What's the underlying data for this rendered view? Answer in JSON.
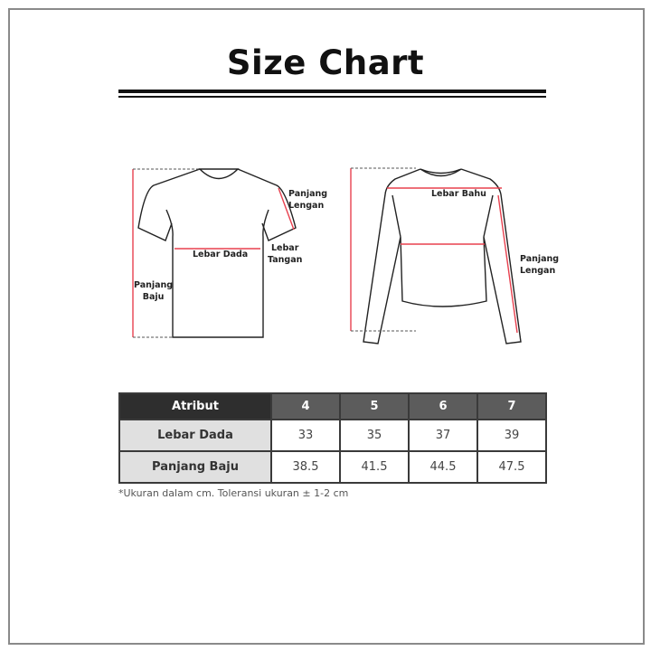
{
  "title": "Size Chart",
  "diagram_labels": {
    "tshirt": {
      "panjang_lengan": [
        "Panjang",
        "Lengan"
      ],
      "lebar_dada": "Lebar Dada",
      "lebar_tangan": [
        "Lebar",
        "Tangan"
      ],
      "panjang_baju": [
        "Panjang",
        "Baju"
      ]
    },
    "longsleeve": {
      "lebar_bahu": "Lebar Bahu",
      "panjang_lengan": [
        "Panjang",
        "Lengan"
      ]
    }
  },
  "colors": {
    "measure_line": "#e8414f",
    "header_dark": "#2e2e2e",
    "header_size": "#5c5c5c",
    "row_header": "#e0e0e0"
  },
  "table": {
    "headers": [
      "Atribut",
      "4",
      "5",
      "6",
      "7"
    ],
    "rows": [
      {
        "label": "Lebar Dada",
        "values": [
          "33",
          "35",
          "37",
          "39"
        ]
      },
      {
        "label": "Panjang Baju",
        "values": [
          "38.5",
          "41.5",
          "44.5",
          "47.5"
        ]
      }
    ]
  },
  "note": "*Ukuran dalam cm. Toleransi ukuran ± 1-2 cm"
}
